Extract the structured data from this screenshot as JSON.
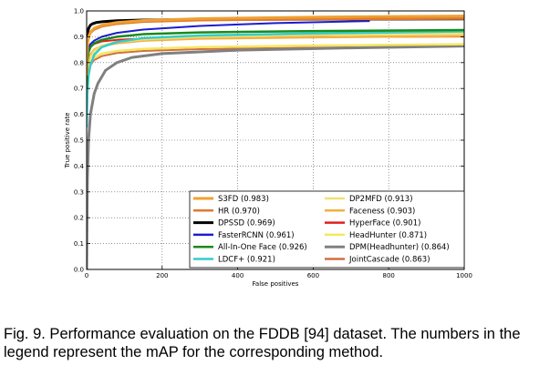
{
  "caption": "Fig. 9. Performance evaluation on the FDDB [94] dataset. The numbers in the legend represent the mAP for the corresponding method.",
  "chart_data": {
    "type": "line",
    "xlabel": "False positives",
    "ylabel": "True positive rate",
    "xlim": [
      0,
      1000
    ],
    "ylim": [
      0.0,
      1.0
    ],
    "xticks": [
      "0",
      "200",
      "400",
      "600",
      "800",
      "1000"
    ],
    "yticks": [
      "0.0",
      "0.1",
      "0.2",
      "0.3",
      "0.4",
      "0.5",
      "0.6",
      "0.7",
      "0.8",
      "0.9",
      "1.0"
    ],
    "grid": true,
    "legend_position": "lower-right",
    "series": [
      {
        "name": "S3FD (0.983)",
        "color": "#f0a030",
        "width": 3,
        "x": [
          0,
          1,
          3,
          6,
          10,
          20,
          40,
          80,
          150,
          300,
          600,
          1000
        ],
        "y": [
          0.75,
          0.84,
          0.88,
          0.9,
          0.918,
          0.933,
          0.945,
          0.955,
          0.963,
          0.97,
          0.976,
          0.98
        ]
      },
      {
        "name": "HR (0.970)",
        "color": "#e07a30",
        "width": 2.5,
        "x": [
          0,
          1,
          3,
          6,
          10,
          20,
          40,
          80,
          150,
          300,
          600,
          1000
        ],
        "y": [
          0.8,
          0.86,
          0.89,
          0.905,
          0.915,
          0.928,
          0.94,
          0.95,
          0.958,
          0.964,
          0.968,
          0.97
        ]
      },
      {
        "name": "DPSSD (0.969)",
        "color": "#000000",
        "width": 3,
        "x": [
          0,
          1,
          2,
          4,
          6,
          10,
          15,
          25,
          40,
          80,
          150,
          300,
          600,
          1000
        ],
        "y": [
          0.85,
          0.89,
          0.91,
          0.925,
          0.935,
          0.945,
          0.95,
          0.955,
          0.958,
          0.962,
          0.965,
          0.967,
          0.968,
          0.969
        ]
      },
      {
        "name": "FasterRCNN (0.961)",
        "color": "#1c1cd0",
        "width": 2,
        "x": [
          0,
          2,
          5,
          10,
          20,
          40,
          80,
          150,
          300,
          500,
          750
        ],
        "y": [
          0.8,
          0.84,
          0.86,
          0.872,
          0.885,
          0.9,
          0.915,
          0.928,
          0.942,
          0.953,
          0.961
        ]
      },
      {
        "name": "All-In-One Face (0.926)",
        "color": "#1a8a1a",
        "width": 2.5,
        "x": [
          0,
          2,
          5,
          10,
          20,
          40,
          80,
          150,
          300,
          600,
          1000
        ],
        "y": [
          0.7,
          0.8,
          0.84,
          0.86,
          0.875,
          0.888,
          0.9,
          0.91,
          0.917,
          0.922,
          0.926
        ]
      },
      {
        "name": "LDCF+ (0.921)",
        "color": "#33cccc",
        "width": 2.5,
        "x": [
          0,
          2,
          5,
          10,
          20,
          40,
          80,
          150,
          300,
          600,
          1000
        ],
        "y": [
          0.55,
          0.68,
          0.75,
          0.79,
          0.83,
          0.86,
          0.88,
          0.895,
          0.905,
          0.913,
          0.921
        ]
      },
      {
        "name": "DP2MFD (0.913)",
        "color": "#f4e070",
        "width": 2.5,
        "x": [
          0,
          2,
          5,
          10,
          20,
          40,
          80,
          150,
          300,
          600,
          1000
        ],
        "y": [
          0.6,
          0.73,
          0.79,
          0.82,
          0.845,
          0.865,
          0.88,
          0.89,
          0.9,
          0.907,
          0.913
        ]
      },
      {
        "name": "Faceness (0.903)",
        "color": "#f2b040",
        "width": 2.5,
        "x": [
          0,
          2,
          5,
          10,
          20,
          40,
          80,
          150,
          300,
          600,
          1000
        ],
        "y": [
          0.65,
          0.75,
          0.8,
          0.83,
          0.85,
          0.865,
          0.875,
          0.885,
          0.893,
          0.898,
          0.903
        ]
      },
      {
        "name": "HyperFace (0.901)",
        "color": "#e02020",
        "width": 2,
        "x": [
          0,
          2,
          5,
          10,
          20,
          40,
          80,
          150,
          300,
          600,
          1000
        ],
        "y": [
          0.7,
          0.8,
          0.84,
          0.86,
          0.872,
          0.882,
          0.888,
          0.893,
          0.896,
          0.899,
          0.901
        ]
      },
      {
        "name": "HeadHunter (0.871)",
        "color": "#f6e660",
        "width": 2.5,
        "x": [
          0,
          2,
          5,
          10,
          20,
          40,
          80,
          150,
          300,
          600,
          1000
        ],
        "y": [
          0.6,
          0.72,
          0.77,
          0.8,
          0.82,
          0.835,
          0.845,
          0.853,
          0.86,
          0.866,
          0.871
        ]
      },
      {
        "name": "DPM(Headhunter) (0.864)",
        "color": "#808080",
        "width": 3,
        "x": [
          0,
          2,
          5,
          10,
          20,
          30,
          50,
          80,
          120,
          200,
          400,
          700,
          1000
        ],
        "y": [
          0.0,
          0.35,
          0.5,
          0.6,
          0.68,
          0.72,
          0.77,
          0.8,
          0.82,
          0.835,
          0.848,
          0.857,
          0.864
        ]
      },
      {
        "name": "JointCascade (0.863)",
        "color": "#d07040",
        "width": 2,
        "x": [
          0,
          2,
          5,
          10,
          20,
          40,
          80,
          150,
          300,
          600,
          1000
        ],
        "y": [
          0.6,
          0.72,
          0.76,
          0.79,
          0.81,
          0.825,
          0.837,
          0.845,
          0.852,
          0.858,
          0.863
        ]
      }
    ]
  }
}
